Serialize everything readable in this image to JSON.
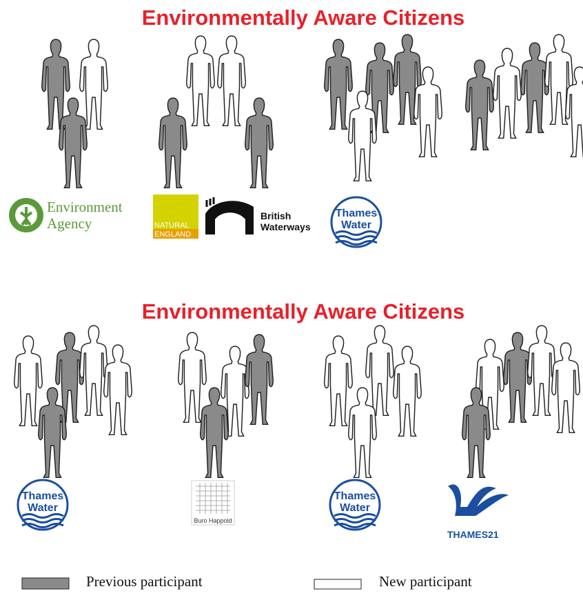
{
  "sections": [
    {
      "title": "Environmentally Aware Citizens",
      "logos": {
        "environment_agency": [
          "Environment",
          "Agency"
        ],
        "natural_england": [
          "NATURAL",
          "ENGLAND"
        ],
        "british_waterways": [
          "British",
          "Waterways"
        ],
        "thames_water": [
          "Thames",
          "Water"
        ]
      }
    },
    {
      "title": "Environmentally Aware Citizens",
      "logos": {
        "thames_water_1": [
          "Thames",
          "Water"
        ],
        "buro_happold": "Buro Happold",
        "thames_water_2": [
          "Thames",
          "Water"
        ],
        "thames21": "THAMES21"
      }
    }
  ],
  "legend": {
    "previous": "Previous participant",
    "new": "New participant"
  }
}
